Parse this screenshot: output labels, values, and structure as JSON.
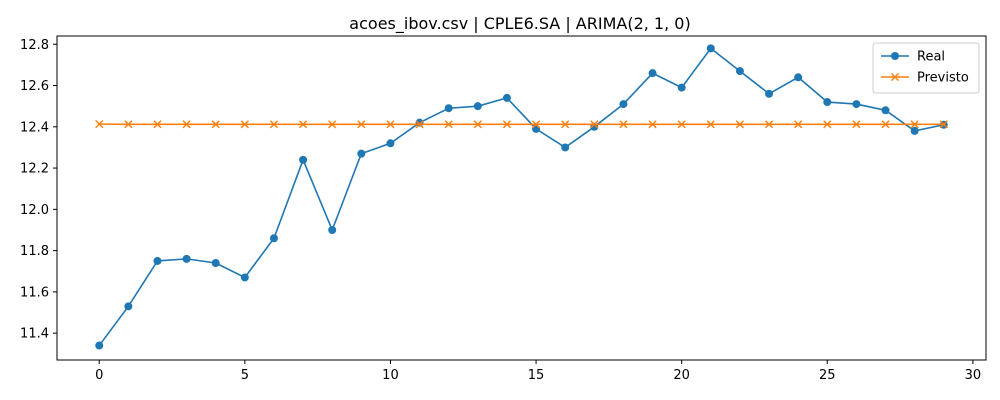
{
  "chart_data": {
    "type": "line",
    "title": "acoes_ibov.csv | CPLE6.SA | ARIMA(2, 1, 0)",
    "xlabel": "",
    "ylabel": "",
    "xlim": [
      -1.45,
      30.45
    ],
    "ylim": [
      11.27,
      12.84
    ],
    "xticks": [
      0,
      5,
      10,
      15,
      20,
      25,
      30
    ],
    "yticks": [
      11.4,
      11.6,
      11.8,
      12.0,
      12.2,
      12.4,
      12.6,
      12.8
    ],
    "grid": false,
    "legend_position": "top-right",
    "series": [
      {
        "name": "Real",
        "color": "#1f77b4",
        "marker": "circle",
        "x": [
          0,
          1,
          2,
          3,
          4,
          5,
          6,
          7,
          8,
          9,
          10,
          11,
          12,
          13,
          14,
          15,
          16,
          17,
          18,
          19,
          20,
          21,
          22,
          23,
          24,
          25,
          26,
          27,
          28,
          29
        ],
        "values": [
          11.34,
          11.53,
          11.75,
          11.76,
          11.74,
          11.67,
          11.86,
          12.24,
          11.9,
          12.27,
          12.32,
          12.42,
          12.49,
          12.5,
          12.54,
          12.39,
          12.3,
          12.4,
          12.51,
          12.66,
          12.59,
          12.78,
          12.67,
          12.56,
          12.64,
          12.52,
          12.51,
          12.48,
          12.38,
          12.41
        ]
      },
      {
        "name": "Previsto",
        "color": "#ff7f0e",
        "marker": "x",
        "x": [
          0,
          1,
          2,
          3,
          4,
          5,
          6,
          7,
          8,
          9,
          10,
          11,
          12,
          13,
          14,
          15,
          16,
          17,
          18,
          19,
          20,
          21,
          22,
          23,
          24,
          25,
          26,
          27,
          28,
          29
        ],
        "values": [
          12.413,
          12.412,
          12.412,
          12.412,
          12.412,
          12.412,
          12.412,
          12.412,
          12.412,
          12.412,
          12.412,
          12.412,
          12.412,
          12.412,
          12.412,
          12.412,
          12.412,
          12.412,
          12.412,
          12.412,
          12.412,
          12.412,
          12.412,
          12.412,
          12.412,
          12.412,
          12.412,
          12.412,
          12.412,
          12.412
        ]
      }
    ]
  }
}
